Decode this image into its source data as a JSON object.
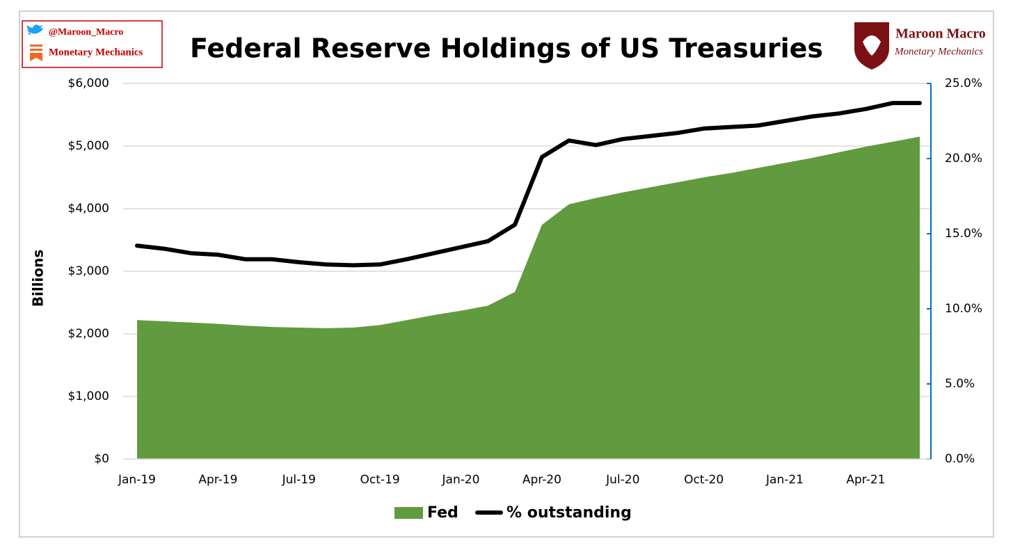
{
  "branding": {
    "twitter": "@Maroon_Macro",
    "newsletter": "Monetary Mechanics",
    "logo_title": "Maroon Macro",
    "logo_subtitle": "Monetary Mechanics"
  },
  "chart_data": {
    "type": "area_line",
    "title": "Federal Reserve Holdings of US Treasuries",
    "y_axis_label": "Billions",
    "categories": [
      "Jan-19",
      null,
      null,
      "Apr-19",
      null,
      null,
      "Jul-19",
      null,
      null,
      "Oct-19",
      null,
      null,
      "Jan-20",
      null,
      null,
      "Apr-20",
      null,
      null,
      "Jul-20",
      null,
      null,
      "Oct-20",
      null,
      null,
      "Jan-21",
      null,
      null,
      "Apr-21",
      null,
      null
    ],
    "series": [
      {
        "name": "Fed",
        "color": "#629a3f",
        "values": [
          2220,
          2200,
          2180,
          2160,
          2130,
          2110,
          2100,
          2090,
          2100,
          2140,
          2220,
          2300,
          2370,
          2450,
          2670,
          3740,
          4070,
          4170,
          4260,
          4340,
          4420,
          4500,
          4570,
          4650,
          4730,
          4810,
          4900,
          4990,
          5070,
          5150
        ]
      },
      {
        "name": "% outstanding",
        "color": "#000000",
        "axis": "y2",
        "values": [
          14.2,
          14.0,
          13.7,
          13.6,
          13.3,
          13.3,
          13.1,
          12.95,
          12.9,
          12.95,
          13.3,
          13.7,
          14.1,
          14.5,
          15.6,
          20.1,
          21.2,
          20.9,
          21.3,
          21.5,
          21.7,
          22.0,
          22.1,
          22.2,
          22.5,
          22.8,
          23.0,
          23.3,
          23.7,
          23.7
        ]
      }
    ],
    "ylim": [
      0,
      6000
    ],
    "yticks": [
      {
        "value": 0,
        "label": "$0"
      },
      {
        "value": 1000,
        "label": "$1,000"
      },
      {
        "value": 2000,
        "label": "$2,000"
      },
      {
        "value": 3000,
        "label": "$3,000"
      },
      {
        "value": 4000,
        "label": "$4,000"
      },
      {
        "value": 5000,
        "label": "$5,000"
      },
      {
        "value": 6000,
        "label": "$6,000"
      }
    ],
    "y2lim": [
      0,
      25
    ],
    "y2ticks": [
      {
        "value": 0,
        "label": "0.0%"
      },
      {
        "value": 5,
        "label": "5.0%"
      },
      {
        "value": 10,
        "label": "10.0%"
      },
      {
        "value": 15,
        "label": "15.0%"
      },
      {
        "value": 20,
        "label": "20.0%"
      },
      {
        "value": 25,
        "label": "25.0%"
      }
    ],
    "grid": true,
    "legend": "bottom"
  }
}
